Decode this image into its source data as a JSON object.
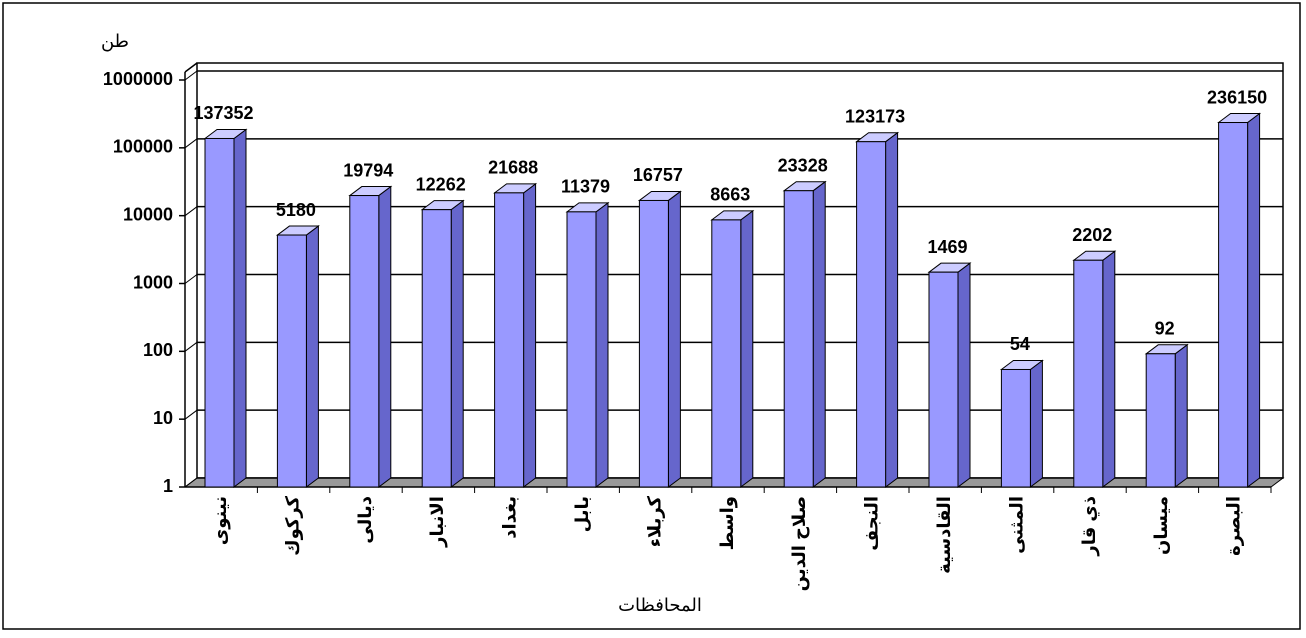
{
  "chart_data": {
    "type": "bar",
    "y_label": "طن",
    "x_label": "المحافظات",
    "categories": [
      "نينوى",
      "كركوك",
      "ديالى",
      "الانبار",
      "بغداد",
      "بابل",
      "كربلاء",
      "واسط",
      "صلاح الدين",
      "النجف",
      "القادسية",
      "المثنى",
      "ذي قار",
      "ميسان",
      "البصرة"
    ],
    "values": [
      137352,
      5180,
      19794,
      12262,
      21688,
      11379,
      16757,
      8663,
      23328,
      123173,
      1469,
      54,
      2202,
      92,
      236150
    ],
    "color": "#9999ff",
    "log_scale": true,
    "grid": true,
    "ylim": [
      1,
      1000000
    ],
    "yticks": [
      1,
      10,
      100,
      1000,
      10000,
      100000,
      1000000
    ]
  }
}
